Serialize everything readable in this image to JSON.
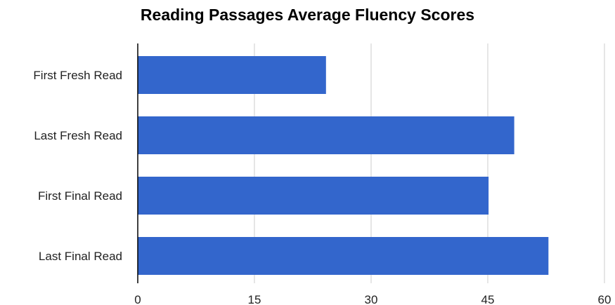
{
  "chart_data": {
    "type": "bar",
    "orientation": "horizontal",
    "title": "Reading Passages Average Fluency Scores",
    "xlabel": "",
    "ylabel": "",
    "categories": [
      "First Fresh Read",
      "Last Fresh Read",
      "First Final Read",
      "Last Final Read"
    ],
    "values": [
      24.2,
      48.4,
      45.1,
      52.8
    ],
    "xlim": [
      0,
      60
    ],
    "ticks": [
      0,
      15,
      30,
      45,
      60
    ],
    "tick_labels": [
      "0",
      "15",
      "30",
      "45",
      "60"
    ],
    "grid": true,
    "legend": "none",
    "colors": {
      "bar": "#3366cc",
      "grid": "#cccccc",
      "axis": "#000000",
      "text": "#222222"
    }
  }
}
